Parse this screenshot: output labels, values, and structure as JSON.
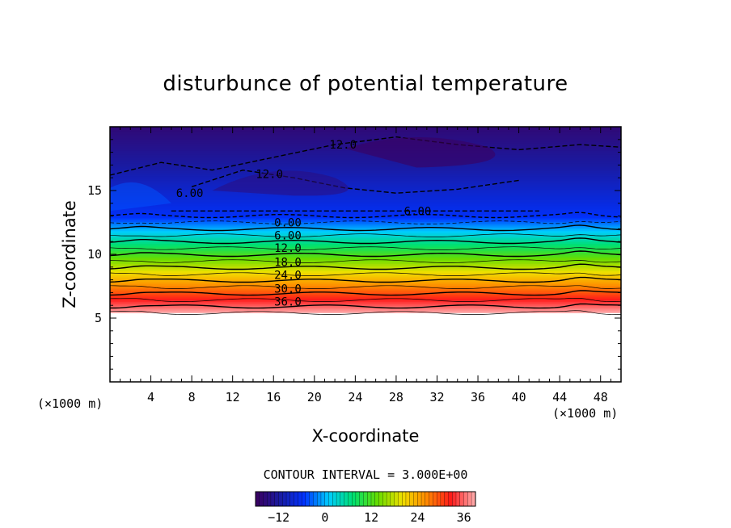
{
  "chart_data": {
    "type": "heatmap",
    "title": "disturbunce of potential temperature",
    "xlabel": "X-coordinate",
    "ylabel": "Z-coordinate",
    "x_unit": "(×1000 m)",
    "y_unit": "(×1000 m)",
    "xlim": [
      0,
      50
    ],
    "ylim": [
      0,
      20
    ],
    "x_ticks": [
      4,
      8,
      12,
      16,
      20,
      24,
      28,
      32,
      36,
      40,
      44,
      48
    ],
    "y_ticks": [
      5,
      10,
      15
    ],
    "contour_interval_text": "CONTOUR INTERVAL = 3.000E+00",
    "contour_interval": 3.0,
    "value_range": [
      -18,
      39
    ],
    "colorbar": {
      "range": [
        -18,
        39
      ],
      "ticks": [
        -12,
        0,
        12,
        24,
        36
      ],
      "tick_labels": [
        "−12",
        "0",
        "12",
        "24",
        "36"
      ]
    },
    "surface_top_z": 5.4,
    "contour_labels": [
      {
        "text": "0.00",
        "x": 17.4,
        "z": 12.5
      },
      {
        "text": "6.00",
        "x": 17.4,
        "z": 11.5
      },
      {
        "text": "12.0",
        "x": 17.4,
        "z": 10.5
      },
      {
        "text": "18.0",
        "x": 17.4,
        "z": 9.4
      },
      {
        "text": "24.0",
        "x": 17.4,
        "z": 8.4
      },
      {
        "text": "30.0",
        "x": 17.4,
        "z": 7.3
      },
      {
        "text": "36.0",
        "x": 17.4,
        "z": 6.3
      },
      {
        "text": "6.00",
        "x": 7.8,
        "z": 14.8
      },
      {
        "text": "12.0",
        "x": 15.6,
        "z": 16.3
      },
      {
        "text": "12.0",
        "x": 22.8,
        "z": 18.6
      },
      {
        "text": "6.00",
        "x": 30.1,
        "z": 13.4
      }
    ],
    "annotations": {
      "x_unit_label": "(×1000 m)",
      "y_unit_label": "(×1000 m)"
    },
    "colors": {
      "scale": [
        "#3b0060",
        "#1a1aa0",
        "#0033ff",
        "#00ccff",
        "#00e070",
        "#66dd00",
        "#f0e000",
        "#ff8a00",
        "#ff1a1a",
        "#ffb0b0"
      ]
    }
  }
}
